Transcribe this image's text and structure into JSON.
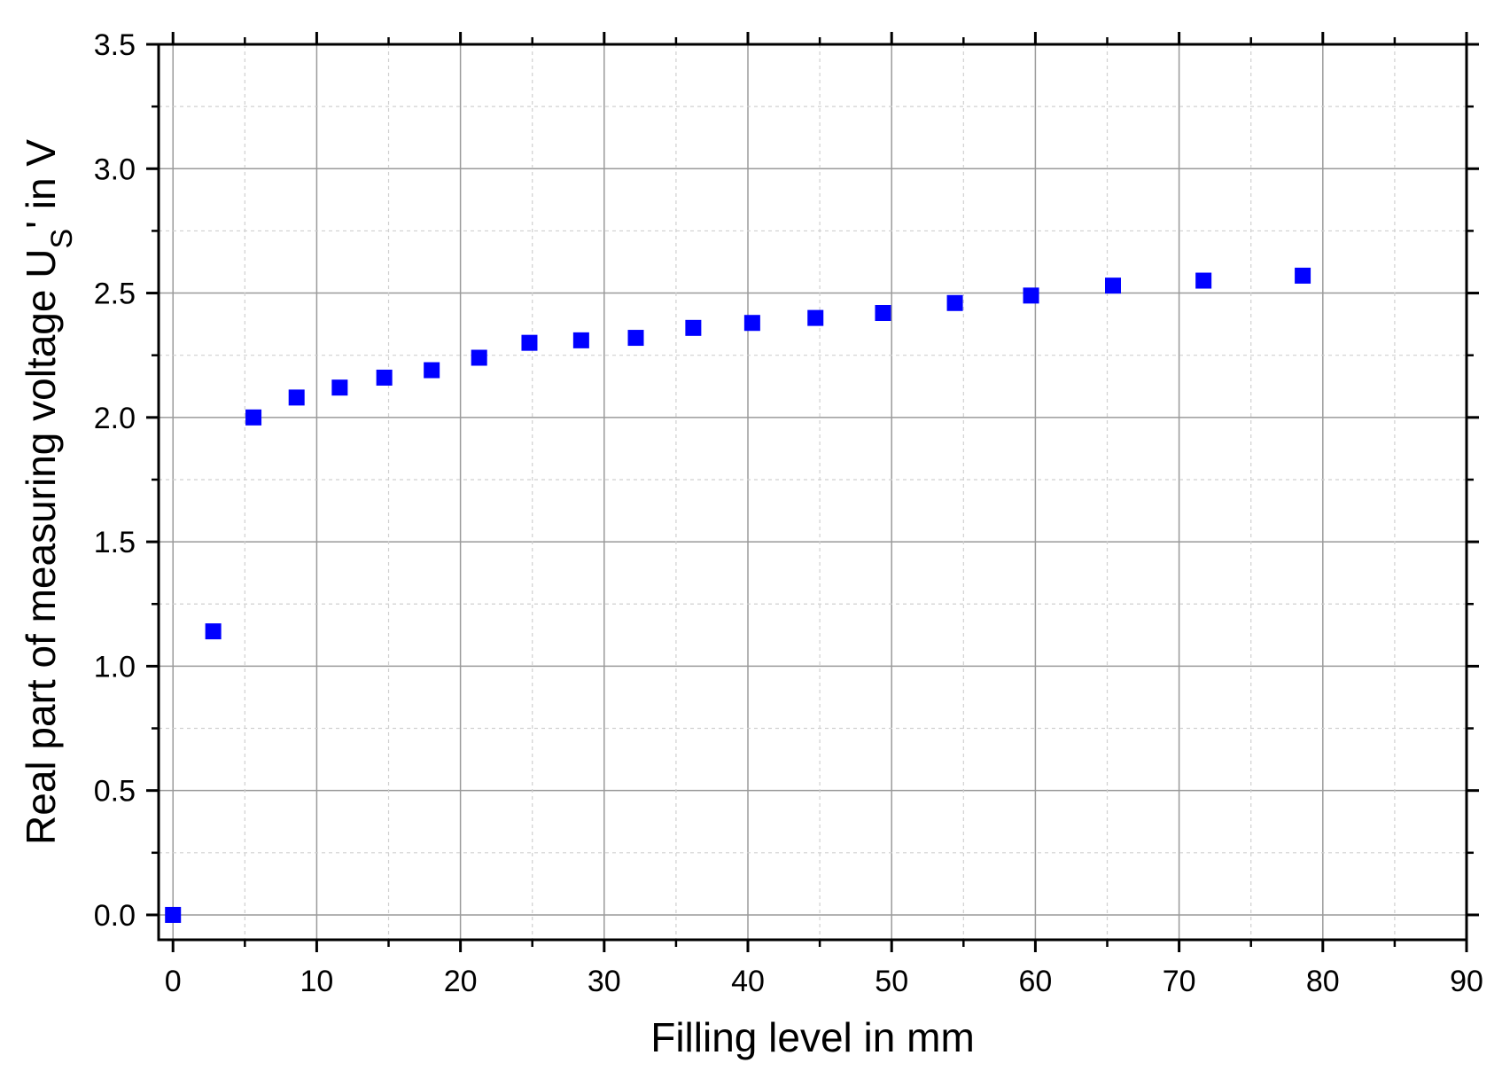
{
  "chart_data": {
    "type": "scatter",
    "xlabel": "Filling level in mm",
    "ylabel": {
      "main": "Real part of measuring voltage U",
      "subscript": "S",
      "suffix": "' in V"
    },
    "xlim": [
      -1,
      90
    ],
    "ylim": [
      -0.1,
      3.5
    ],
    "x_ticks": [
      "0",
      "10",
      "20",
      "30",
      "40",
      "50",
      "60",
      "70",
      "80",
      "90"
    ],
    "y_ticks": [
      "0.0",
      "0.5",
      "1.0",
      "1.5",
      "2.0",
      "2.5",
      "3.0",
      "3.5"
    ],
    "grid": true,
    "marker_color": "#0000ff",
    "series": [
      {
        "marker": "square",
        "x": [
          0,
          2.8,
          5.6,
          8.6,
          11.6,
          14.7,
          18.0,
          21.3,
          24.8,
          28.4,
          32.2,
          36.2,
          40.3,
          44.7,
          49.4,
          54.4,
          59.7,
          65.4,
          71.7,
          78.6
        ],
        "y": [
          0.0,
          1.14,
          2.0,
          2.08,
          2.12,
          2.16,
          2.19,
          2.24,
          2.3,
          2.31,
          2.32,
          2.36,
          2.38,
          2.4,
          2.42,
          2.46,
          2.49,
          2.53,
          2.55,
          2.57
        ]
      }
    ]
  }
}
